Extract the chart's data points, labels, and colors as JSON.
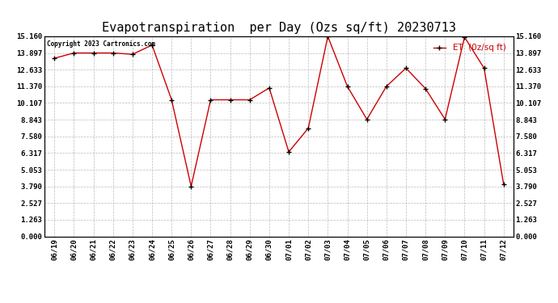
{
  "title": "Evapotranspiration  per Day (Ozs sq/ft) 20230713",
  "legend_label": "ET  (0z/sq ft)",
  "copyright_text": "Copyright 2023 Cartronics.com",
  "x_labels": [
    "06/19",
    "06/20",
    "06/21",
    "06/22",
    "06/23",
    "06/24",
    "06/25",
    "06/26",
    "06/27",
    "06/28",
    "06/29",
    "06/30",
    "07/01",
    "07/02",
    "07/03",
    "07/04",
    "07/05",
    "07/06",
    "07/07",
    "07/08",
    "07/09",
    "07/10",
    "07/11",
    "07/12"
  ],
  "y_values": [
    13.5,
    13.9,
    13.9,
    13.9,
    13.8,
    14.5,
    10.35,
    3.79,
    10.35,
    10.35,
    10.35,
    11.25,
    6.4,
    8.2,
    15.16,
    11.37,
    8.87,
    11.37,
    12.75,
    11.2,
    8.87,
    15.1,
    12.75,
    3.95
  ],
  "yticks": [
    0.0,
    1.263,
    2.527,
    3.79,
    5.053,
    6.317,
    7.58,
    8.843,
    10.107,
    11.37,
    12.633,
    13.897,
    15.16
  ],
  "line_color": "#cc0000",
  "marker_color": "#000000",
  "bg_color": "#ffffff",
  "grid_color": "#bbbbbb",
  "title_fontsize": 11,
  "legend_color": "#cc0000",
  "ylim_min": 0.0,
  "ylim_max": 15.16
}
